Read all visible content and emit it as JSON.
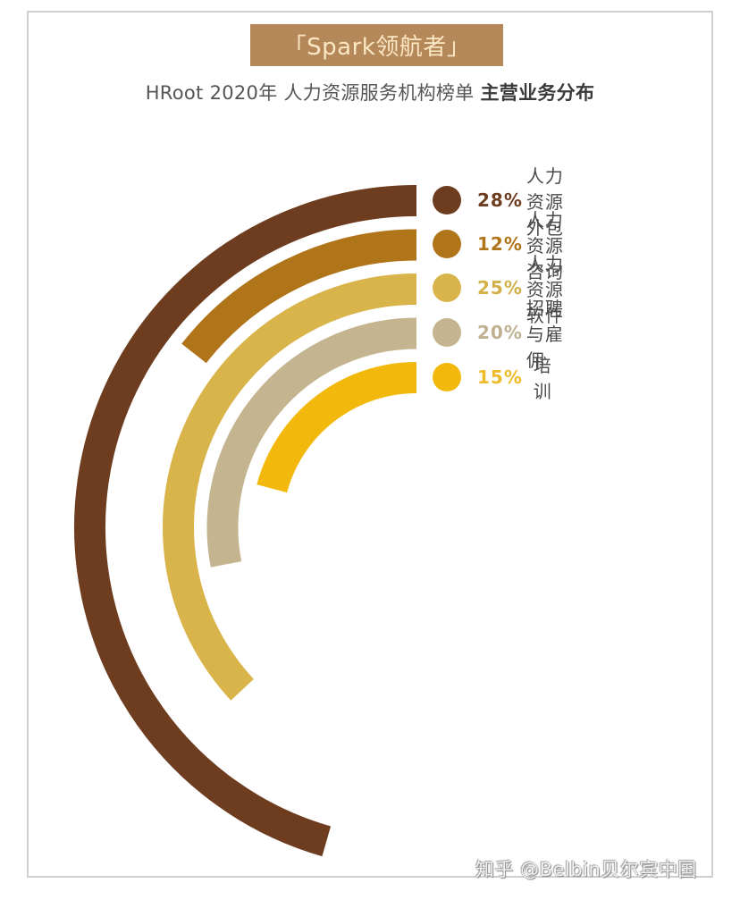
{
  "header": {
    "banner_text": "「Spark领航者」",
    "banner_bg": "#b5885a",
    "subtitle_regular": "HRoot 2020年 人力资源服务机构榜单 ",
    "subtitle_bold": "主营业务分布"
  },
  "chart_data": {
    "type": "radial-bar",
    "title": "HRoot 2020年 人力资源服务机构榜单 主营业务分布",
    "categories": [
      "人力资源外包",
      "人力资源咨询",
      "人力资源软件",
      "招聘与雇佣",
      "培训"
    ],
    "values": [
      28,
      12,
      25,
      20,
      15
    ],
    "unit": "%",
    "series": [
      {
        "name": "人力资源外包",
        "value": 28,
        "label": "28%",
        "color": "#6e3d1f",
        "pct_color": "#6e3d1f",
        "sweep_deg": 164
      },
      {
        "name": "人力资源咨询",
        "value": 12,
        "label": "12%",
        "color": "#b07419",
        "pct_color": "#b07419",
        "sweep_deg": 52
      },
      {
        "name": "人力资源软件",
        "value": 25,
        "label": "25%",
        "color": "#d9b44a",
        "pct_color": "#d4b048",
        "sweep_deg": 133
      },
      {
        "name": "招聘与雇佣",
        "value": 20,
        "label": "20%",
        "color": "#c4b590",
        "pct_color": "#bfb190",
        "sweep_deg": 101
      },
      {
        "name": "培训",
        "value": 15,
        "label": "15%",
        "color": "#f2b90c",
        "pct_color": "#eebb2a",
        "sweep_deg": 75
      }
    ],
    "legend_position": "right",
    "grid": false
  },
  "watermark": "知乎 @Belbin贝尔宾中国"
}
